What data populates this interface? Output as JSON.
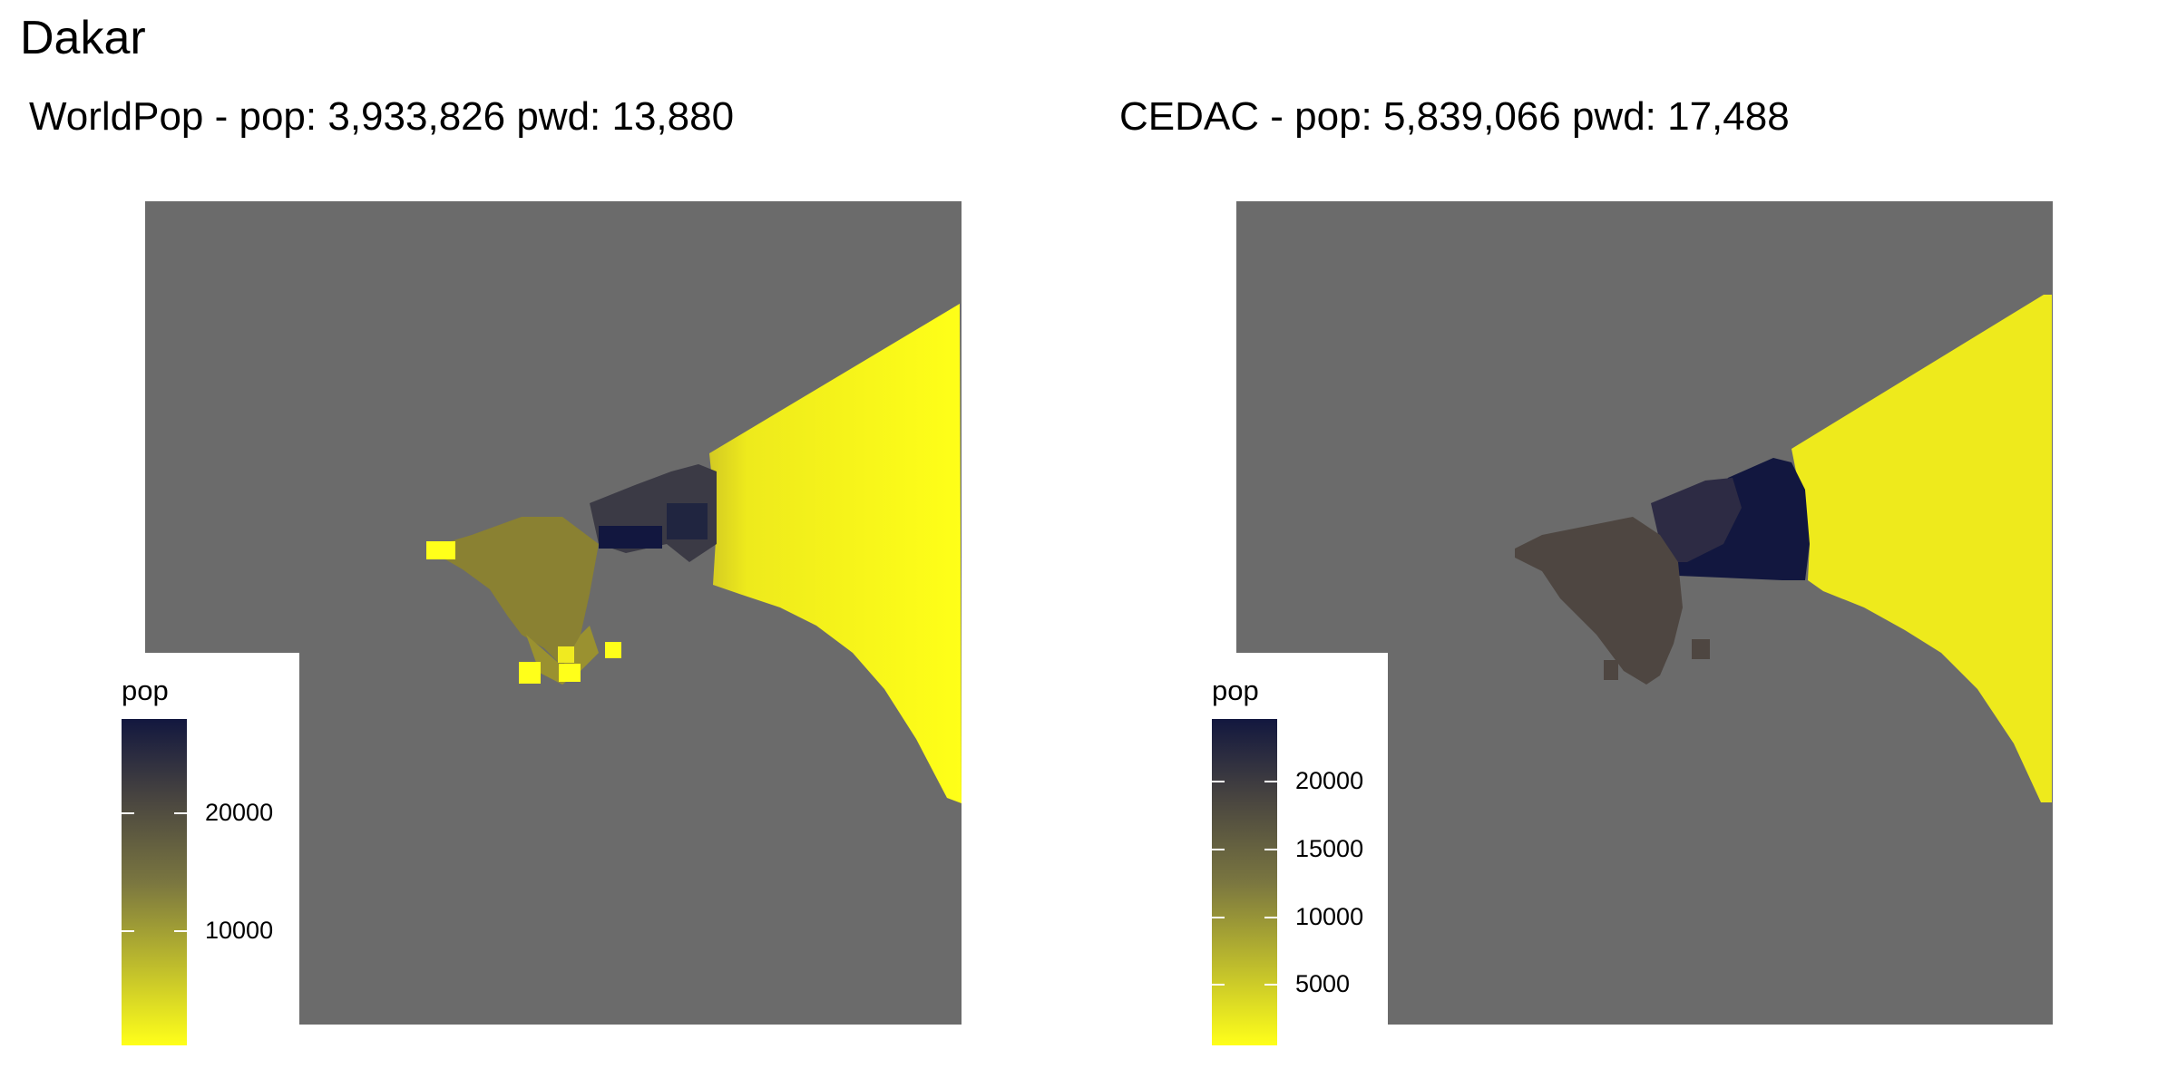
{
  "title": "Dakar",
  "panels": [
    {
      "id": "worldpop",
      "title": "WorldPop - pop: 3,933,826 pwd: 13,880",
      "legend": {
        "title": "pop",
        "ticks": [
          {
            "label": "20000",
            "value": 20000
          },
          {
            "label": "10000",
            "value": 10000
          }
        ],
        "range": [
          2000,
          29000
        ]
      }
    },
    {
      "id": "cedac",
      "title": "CEDAC - pop: 5,839,066 pwd: 17,488",
      "legend": {
        "title": "pop",
        "ticks": [
          {
            "label": "20000",
            "value": 20000
          },
          {
            "label": "15000",
            "value": 15000
          },
          {
            "label": "10000",
            "value": 10000
          },
          {
            "label": "5000",
            "value": 5000
          }
        ],
        "range": [
          600,
          25000
        ]
      }
    }
  ],
  "colors": {
    "background": "#ffffff",
    "map_nodata": "#6b6b6b",
    "low": "#ffff1a",
    "mid": "#6e6a3f",
    "high": "#12173f"
  }
}
